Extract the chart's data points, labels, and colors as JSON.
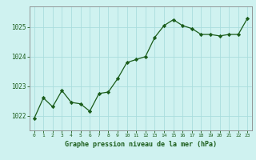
{
  "x": [
    0,
    1,
    2,
    3,
    4,
    5,
    6,
    7,
    8,
    9,
    10,
    11,
    12,
    13,
    14,
    15,
    16,
    17,
    18,
    19,
    20,
    21,
    22,
    23
  ],
  "y": [
    1021.9,
    1022.6,
    1022.3,
    1022.85,
    1022.45,
    1022.4,
    1022.15,
    1022.75,
    1022.8,
    1023.25,
    1023.8,
    1023.9,
    1024.0,
    1024.65,
    1025.05,
    1025.25,
    1025.05,
    1024.95,
    1024.75,
    1024.75,
    1024.7,
    1024.75,
    1024.75,
    1025.3
  ],
  "line_color": "#1a5c1a",
  "marker": "D",
  "marker_size": 2.2,
  "bg_color": "#cff2f0",
  "grid_color": "#aadddd",
  "xlabel": "Graphe pression niveau de la mer (hPa)",
  "xlabel_color": "#1a5c1a",
  "tick_color": "#1a5c1a",
  "axis_color": "#888888",
  "ylim": [
    1021.5,
    1025.7
  ],
  "yticks": [
    1022,
    1023,
    1024,
    1025
  ],
  "xlim": [
    -0.5,
    23.5
  ]
}
